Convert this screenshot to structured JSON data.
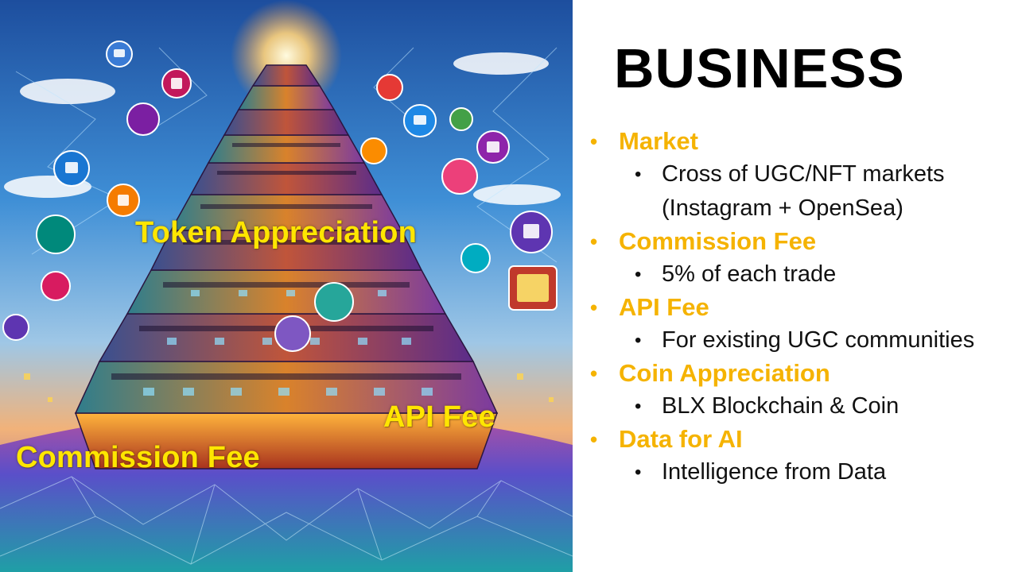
{
  "slide": {
    "title": "BUSINESS",
    "accent_color": "#f5b301"
  },
  "illustration": {
    "subject": "tower-of-social-media-icons",
    "labels": {
      "token": "Token Appreciation",
      "api": "API Fee",
      "commission": "Commission Fee"
    },
    "label_color": "#ffe600"
  },
  "bullets": [
    {
      "heading": "Market",
      "items": [
        [
          "Cross of UGC/NFT markets",
          "(Instagram + OpenSea)"
        ]
      ]
    },
    {
      "heading": "Commission Fee",
      "items": [
        [
          "5% of each trade"
        ]
      ]
    },
    {
      "heading": "API Fee",
      "items": [
        [
          "For existing UGC communities"
        ]
      ]
    },
    {
      "heading": "Coin Appreciation",
      "items": [
        [
          "BLX Blockchain & Coin"
        ]
      ]
    },
    {
      "heading": "Data for AI",
      "items": [
        [
          "Intelligence from Data"
        ]
      ]
    }
  ]
}
